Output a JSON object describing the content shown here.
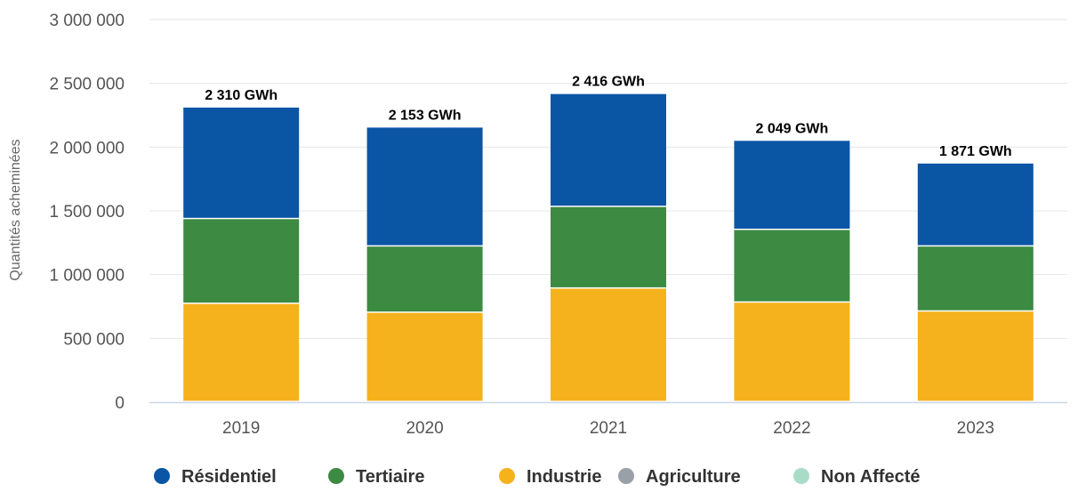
{
  "chart_data": {
    "type": "bar",
    "stacked": true,
    "categories": [
      "2019",
      "2020",
      "2021",
      "2022",
      "2023"
    ],
    "ylabel": "Quantités acheminées",
    "xlabel": "",
    "ylim": [
      0,
      3000000
    ],
    "yticks": [
      0,
      500000,
      1000000,
      1500000,
      2000000,
      2500000,
      3000000
    ],
    "ytick_labels": [
      "0",
      "500 000",
      "1 000 000",
      "1 500 000",
      "2 000 000",
      "2 500 000",
      "3 000 000"
    ],
    "grid": true,
    "legend_position": "bottom",
    "series": [
      {
        "name": "Industrie",
        "color": "#f5b21c",
        "values": [
          770000,
          700000,
          890000,
          780000,
          710000
        ]
      },
      {
        "name": "Tertiaire",
        "color": "#3d8a42",
        "values": [
          665000,
          520000,
          640000,
          570000,
          510000
        ]
      },
      {
        "name": "Résidentiel",
        "color": "#0b55a5",
        "values": [
          875000,
          933000,
          886000,
          699000,
          651000
        ]
      },
      {
        "name": "Agriculture",
        "color": "#9aa0a8",
        "values": [
          0,
          0,
          0,
          0,
          0
        ]
      },
      {
        "name": "Non Affecté",
        "color": "#a9dcc7",
        "values": [
          0,
          0,
          0,
          0,
          0
        ]
      }
    ],
    "totals": [
      2310000,
      2153000,
      2416000,
      2049000,
      1871000
    ],
    "total_labels": [
      "2 310 GWh",
      "2 153 GWh",
      "2 416 GWh",
      "2 049 GWh",
      "1 871 GWh"
    ],
    "legend": [
      {
        "name": "Résidentiel",
        "color": "#0b55a5"
      },
      {
        "name": "Tertiaire",
        "color": "#3d8a42"
      },
      {
        "name": "Industrie",
        "color": "#f5b21c"
      },
      {
        "name": "Agriculture",
        "color": "#9aa0a8"
      },
      {
        "name": "Non Affecté",
        "color": "#a9dcc7"
      }
    ]
  }
}
